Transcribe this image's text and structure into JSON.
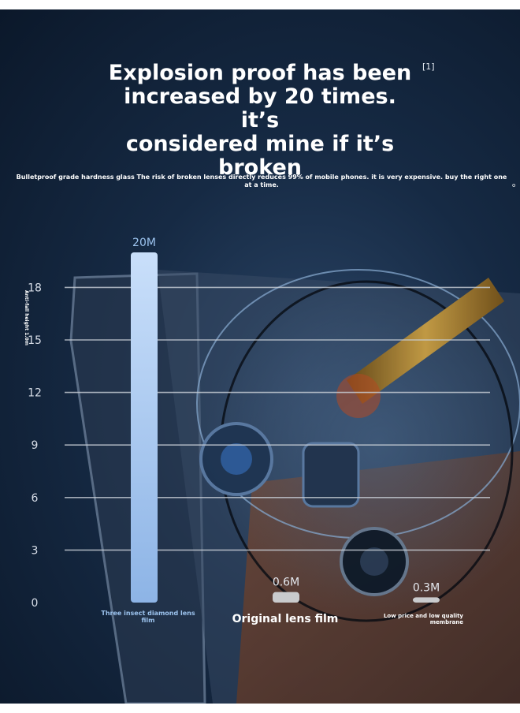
{
  "header": {
    "title_lines": [
      "Explosion proof has been",
      "increased by 20 times. it’s",
      "considered mine if it’s",
      "broken"
    ],
    "footnote": "[1]",
    "subtitle": "Bulletproof grade hardness glass The risk of broken lenses directly reduces 99% of mobile phones. it is very expensive. buy the right one at a time."
  },
  "colors": {
    "background": "#162a44",
    "bar_highlight": "#b6d2f3",
    "bar_gray": "#c9cbcd",
    "highlight_label": "#9cc3ee",
    "gridline": "#c8ced6"
  },
  "chart_data": {
    "type": "bar",
    "ylabel": "Anti-fall height 1.0m",
    "ylim": [
      0,
      20
    ],
    "yticks": [
      0,
      3,
      6,
      9,
      12,
      15,
      18
    ],
    "grid": true,
    "categories": [
      "Three insect diamond lens film",
      "Original lens film",
      "Low price and low quality membrane"
    ],
    "values": [
      20,
      0.6,
      0.3
    ],
    "value_labels": [
      "20M",
      "0.6M",
      "0.3M"
    ]
  }
}
